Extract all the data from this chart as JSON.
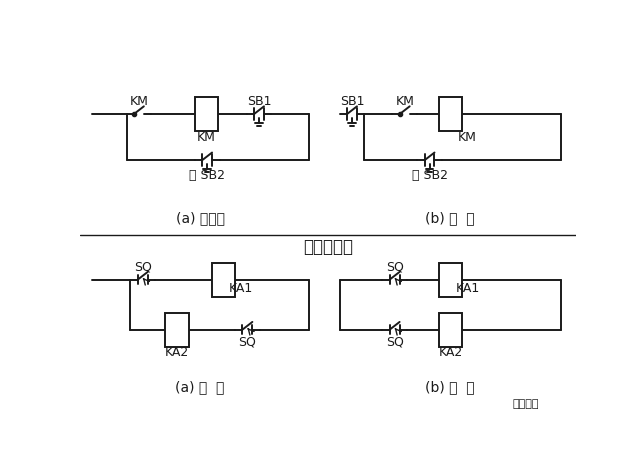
{
  "bg_color": "#ffffff",
  "line_color": "#1a1a1a",
  "title_mid": "电器连接图",
  "label_a1": "(a) 不合理",
  "label_b1": "(b) 合  理",
  "label_a2": "(a) 错  误",
  "label_b2": "(b) 正  确",
  "font_size_label": 10,
  "font_size_title": 12,
  "font_size_tag": 9
}
